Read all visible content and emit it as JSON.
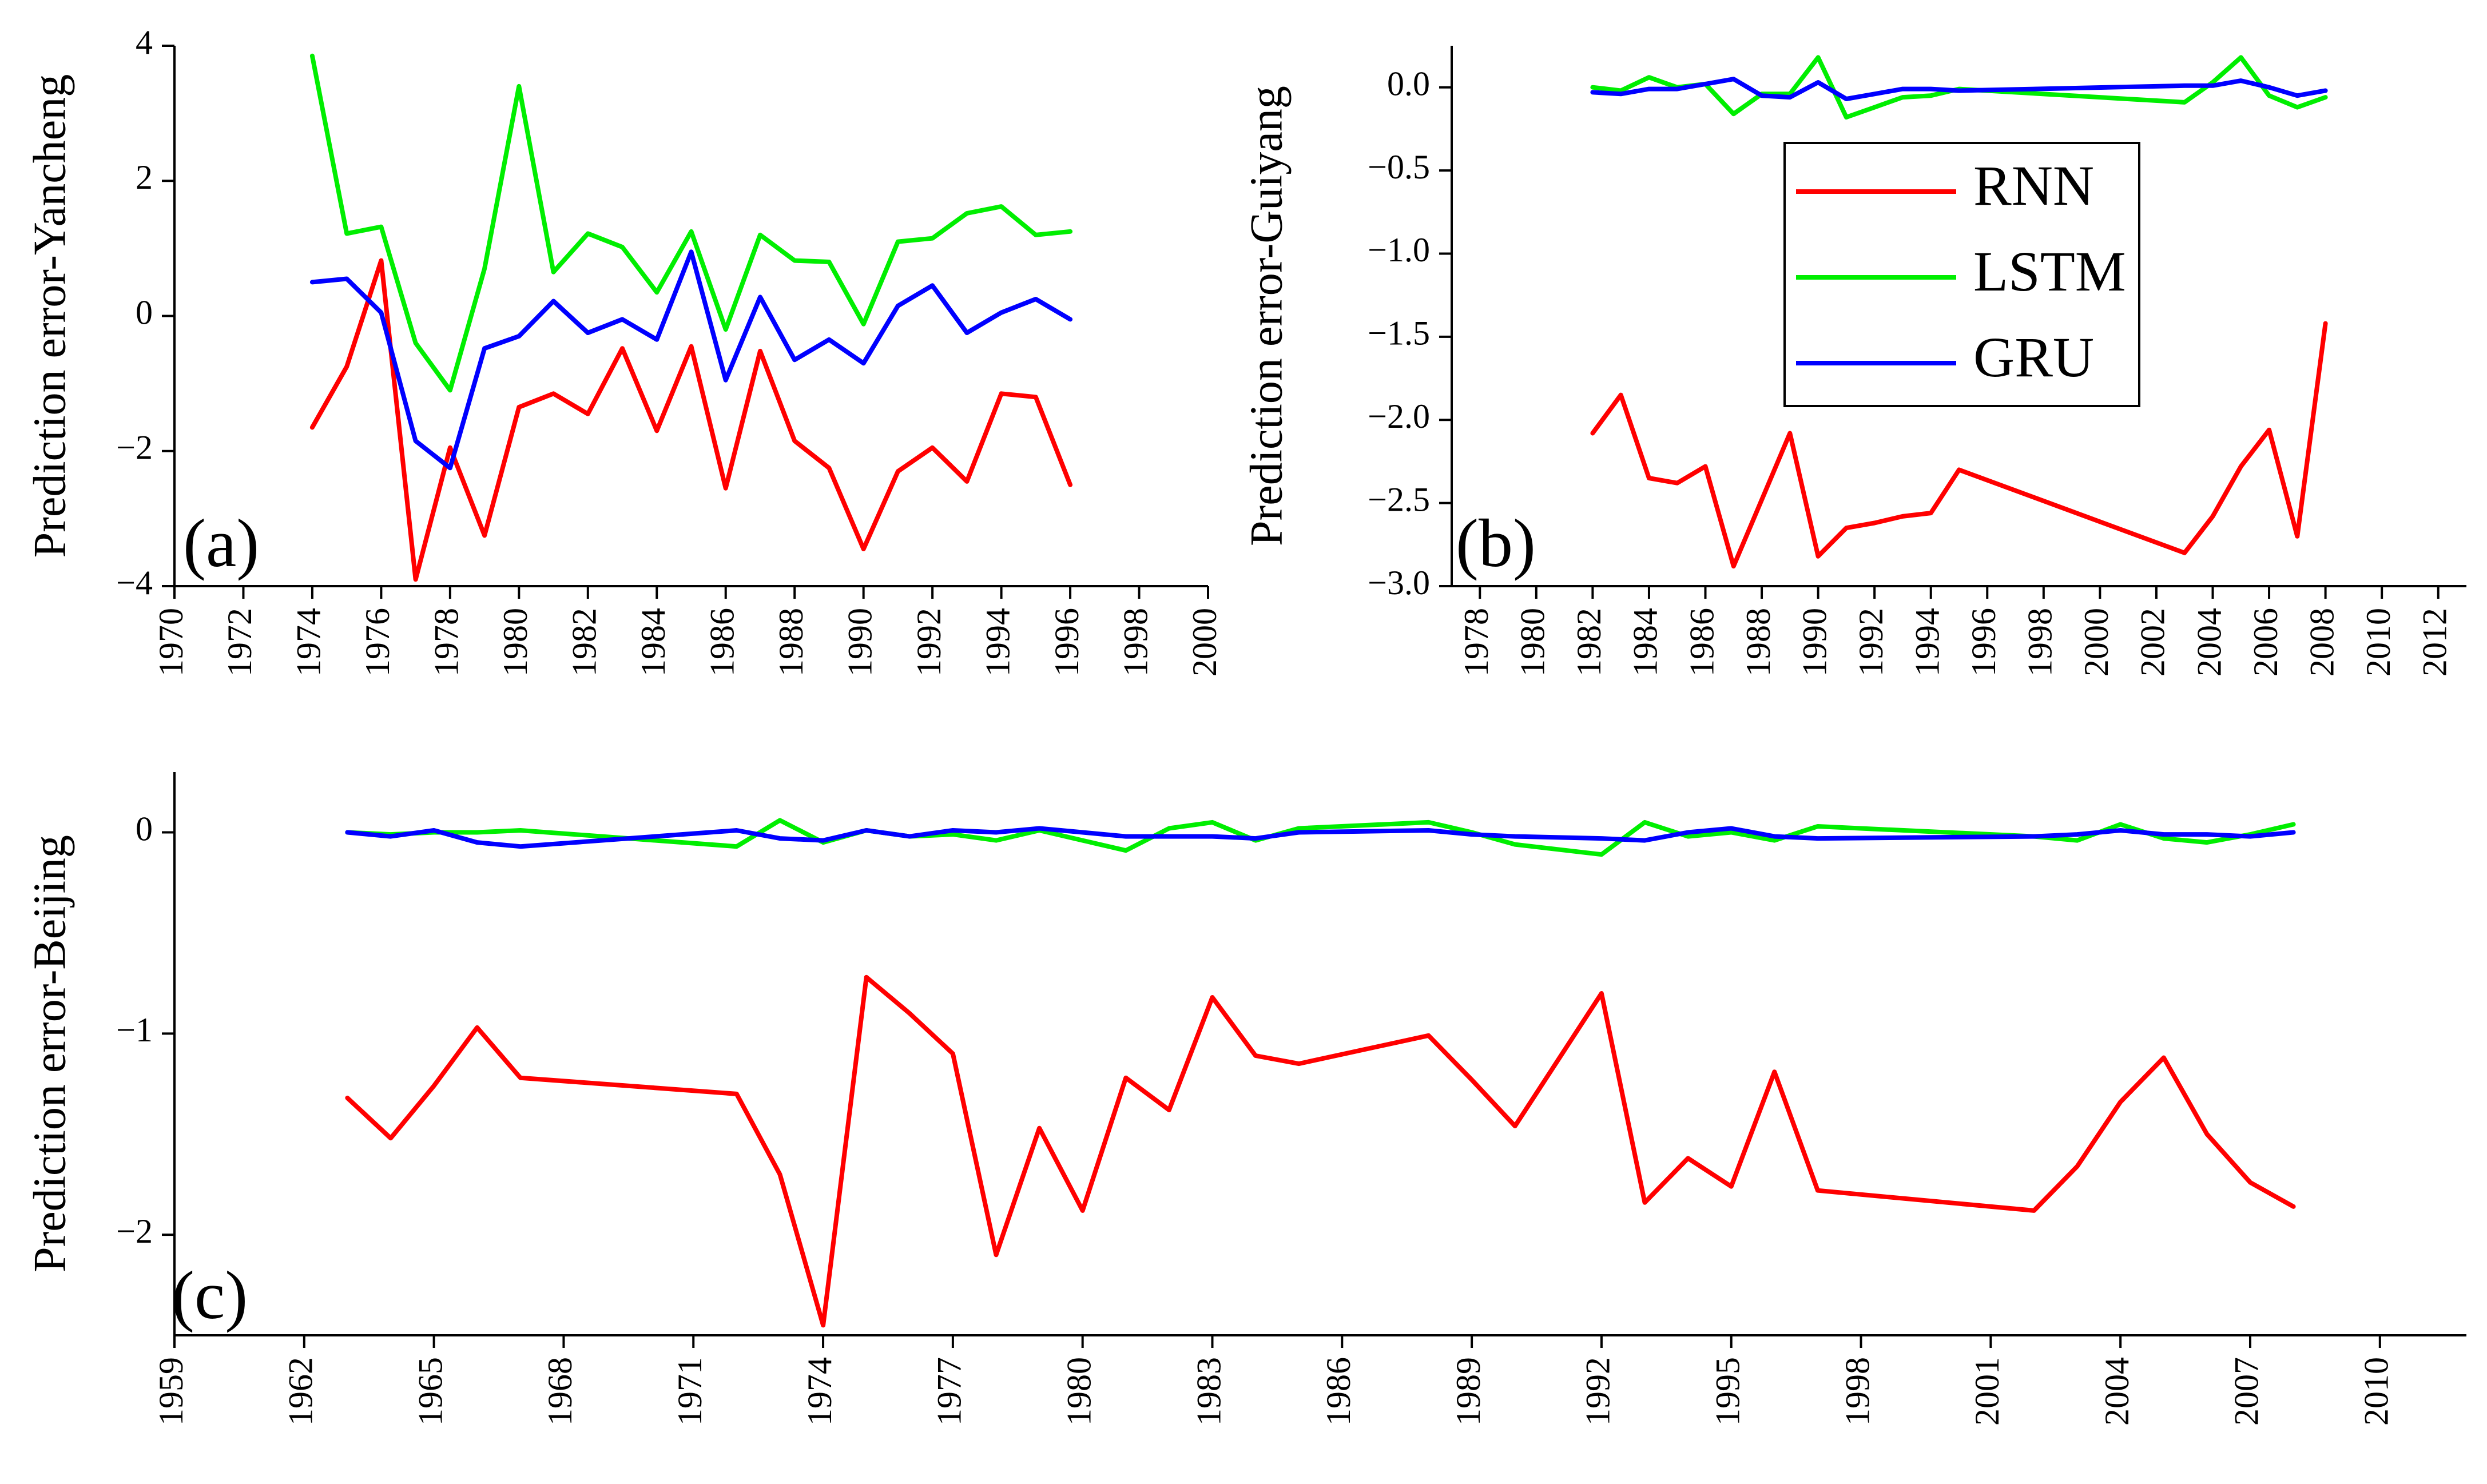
{
  "colors": {
    "RNN": "#ff0000",
    "LSTM": "#00ee00",
    "GRU": "#0000ff"
  },
  "legend": {
    "entries": [
      "RNN",
      "LSTM",
      "GRU"
    ]
  },
  "chart_data": [
    {
      "type": "line",
      "panel_label": "(a)",
      "ylabel": "Prediction error-Yancheng",
      "xlabel": "",
      "xlim": [
        1970,
        2000
      ],
      "ylim": [
        -4,
        4
      ],
      "xticks": [
        "1970",
        "1972",
        "1974",
        "1976",
        "1978",
        "1980",
        "1982",
        "1984",
        "1986",
        "1988",
        "1990",
        "1992",
        "1994",
        "1996",
        "1998",
        "2000"
      ],
      "yticks": [
        "4",
        "2",
        "0",
        "−2",
        "−4"
      ],
      "x": [
        1974,
        1975,
        1976,
        1977,
        1978,
        1979,
        1980,
        1981,
        1982,
        1983,
        1984,
        1985,
        1986,
        1987,
        1988,
        1989,
        1990,
        1991,
        1992,
        1993,
        1994,
        1995,
        1996
      ],
      "series": [
        {
          "name": "RNN",
          "values": [
            -1.65,
            -0.75,
            0.82,
            -3.9,
            -1.95,
            -3.25,
            -1.35,
            -1.15,
            -1.45,
            -0.48,
            -1.7,
            -0.45,
            -2.55,
            -0.52,
            -1.85,
            -2.25,
            -3.45,
            -2.3,
            -1.95,
            -2.45,
            -1.15,
            -1.2,
            -2.5
          ]
        },
        {
          "name": "LSTM",
          "values": [
            3.85,
            1.22,
            1.32,
            -0.4,
            -1.1,
            0.7,
            3.4,
            0.65,
            1.22,
            1.02,
            0.35,
            1.25,
            -0.2,
            1.2,
            0.82,
            0.8,
            -0.12,
            1.1,
            1.15,
            1.52,
            1.62,
            1.2,
            1.25
          ]
        },
        {
          "name": "GRU",
          "values": [
            0.5,
            0.55,
            0.05,
            -1.85,
            -2.25,
            -0.48,
            -0.3,
            0.22,
            -0.25,
            -0.05,
            -0.35,
            0.95,
            -0.95,
            0.28,
            -0.65,
            -0.35,
            -0.7,
            0.15,
            0.45,
            -0.25,
            0.05,
            0.25,
            -0.05
          ]
        }
      ]
    },
    {
      "type": "line",
      "panel_label": "(b)",
      "ylabel": "Prediction error-Guiyang",
      "xlabel": "",
      "xlim": [
        1977,
        2013
      ],
      "ylim": [
        -3.0,
        0.25
      ],
      "xticks": [
        "1978",
        "1980",
        "1982",
        "1984",
        "1986",
        "1988",
        "1990",
        "1992",
        "1994",
        "1996",
        "1998",
        "2000",
        "2002",
        "2004",
        "2006",
        "2008",
        "2010",
        "2012"
      ],
      "yticks": [
        "0.0",
        "−0.5",
        "−1.0",
        "−1.5",
        "−2.0",
        "−2.5",
        "−3.0"
      ],
      "x": [
        1982,
        1983,
        1984,
        1985,
        1986,
        1987,
        1988,
        1989,
        1990,
        1991,
        1992,
        1993,
        1994,
        1995,
        2003,
        2004,
        2005,
        2006,
        2007,
        2008
      ],
      "series": [
        {
          "name": "RNN",
          "values": [
            -2.08,
            -1.85,
            -2.35,
            -2.38,
            -2.28,
            -2.88,
            -2.48,
            -2.08,
            -2.82,
            -2.65,
            -2.62,
            -2.58,
            -2.56,
            -2.3,
            -2.8,
            -2.58,
            -2.28,
            -2.06,
            -2.7,
            -1.42
          ]
        },
        {
          "name": "LSTM",
          "values": [
            0.0,
            -0.02,
            0.06,
            0.0,
            0.02,
            -0.16,
            -0.04,
            -0.04,
            0.18,
            -0.18,
            -0.12,
            -0.06,
            -0.05,
            -0.01,
            -0.09,
            0.03,
            0.18,
            -0.05,
            -0.12,
            -0.06
          ]
        },
        {
          "name": "GRU",
          "values": [
            -0.03,
            -0.04,
            -0.01,
            -0.01,
            0.02,
            0.05,
            -0.05,
            -0.06,
            0.03,
            -0.07,
            -0.04,
            -0.01,
            -0.01,
            -0.02,
            0.01,
            0.01,
            0.04,
            0.0,
            -0.05,
            -0.02
          ]
        }
      ]
    },
    {
      "type": "line",
      "panel_label": "(c)",
      "ylabel": "Prediction error-Beijing",
      "xlabel": "",
      "xlim": [
        1959,
        2012
      ],
      "ylim": [
        -2.5,
        0.3
      ],
      "xticks": [
        "1959",
        "1962",
        "1965",
        "1968",
        "1971",
        "1974",
        "1977",
        "1980",
        "1983",
        "1986",
        "1989",
        "1992",
        "1995",
        "1998",
        "2001",
        "2004",
        "2007",
        "2010"
      ],
      "yticks": [
        "0",
        "−1",
        "−2"
      ],
      "x": [
        1963,
        1964,
        1965,
        1966,
        1967,
        1972,
        1973,
        1974,
        1975,
        1976,
        1977,
        1978,
        1979,
        1980,
        1981,
        1982,
        1983,
        1984,
        1985,
        1988,
        1989,
        1990,
        1992,
        1993,
        1994,
        1995,
        1996,
        1997,
        2002,
        2003,
        2004,
        2005,
        2006,
        2007,
        2008
      ],
      "series": [
        {
          "name": "RNN",
          "values": [
            -1.32,
            -1.52,
            -1.26,
            -0.97,
            -1.22,
            -1.3,
            -1.7,
            -2.45,
            -0.72,
            -0.9,
            -1.1,
            -2.1,
            -1.47,
            -1.88,
            -1.22,
            -1.38,
            -0.82,
            -1.11,
            -1.15,
            -1.01,
            -1.23,
            -1.46,
            -0.8,
            -1.84,
            -1.62,
            -1.76,
            -1.19,
            -1.78,
            -1.88,
            -1.66,
            -1.34,
            -1.12,
            -1.5,
            -1.74,
            -1.86
          ]
        },
        {
          "name": "LSTM",
          "values": [
            0.0,
            -0.01,
            0.0,
            0.0,
            0.01,
            -0.07,
            0.06,
            -0.05,
            0.01,
            -0.02,
            -0.01,
            -0.04,
            0.01,
            -0.04,
            -0.09,
            0.02,
            0.05,
            -0.04,
            0.02,
            0.05,
            0.0,
            -0.06,
            -0.11,
            0.05,
            -0.02,
            0.0,
            -0.04,
            0.03,
            -0.02,
            -0.04,
            0.04,
            -0.03,
            -0.05,
            -0.01,
            0.04
          ]
        },
        {
          "name": "GRU",
          "values": [
            0.0,
            -0.02,
            0.01,
            -0.05,
            -0.07,
            0.01,
            -0.03,
            -0.04,
            0.01,
            -0.02,
            0.01,
            0.0,
            0.02,
            0.0,
            -0.02,
            -0.02,
            -0.02,
            -0.03,
            0.0,
            0.01,
            -0.01,
            -0.02,
            -0.03,
            -0.04,
            0.0,
            0.02,
            -0.02,
            -0.03,
            -0.02,
            -0.01,
            0.01,
            -0.01,
            -0.01,
            -0.02,
            0.0
          ]
        }
      ]
    }
  ]
}
